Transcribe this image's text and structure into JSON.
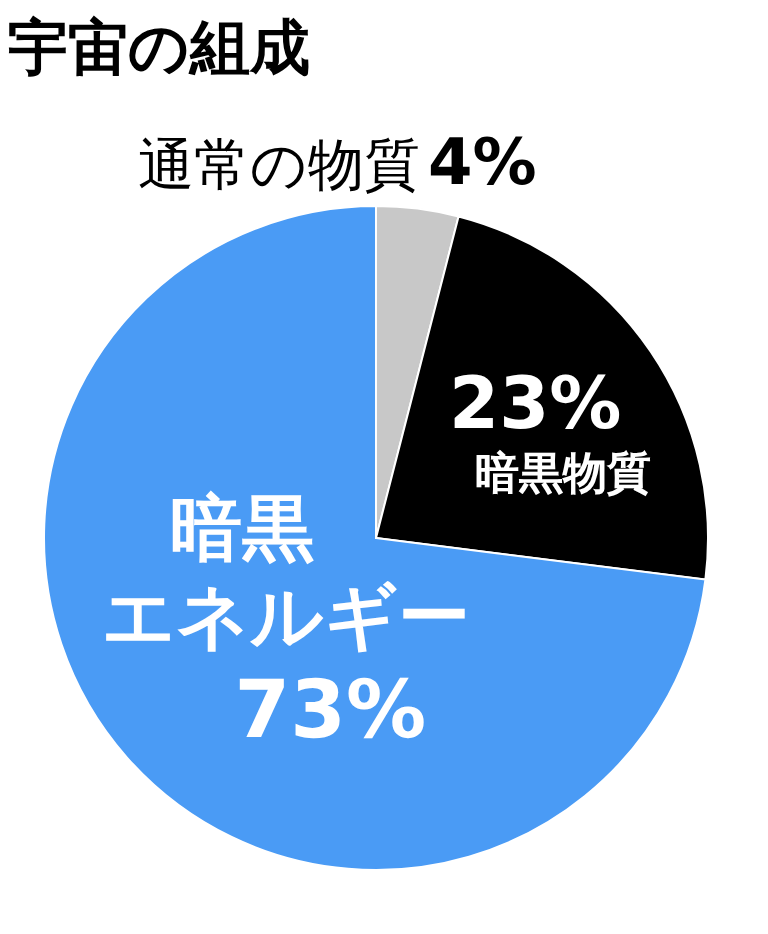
{
  "chart_data": {
    "type": "pie",
    "title": "宇宙の組成",
    "categories": [
      "通常の物質",
      "暗黒物質",
      "暗黒エネルギー"
    ],
    "values": [
      4,
      23,
      73
    ],
    "colors": [
      "#c8c8c8",
      "#000000",
      "#4a9bf5"
    ],
    "value_labels": [
      "4%",
      "23%",
      "73%"
    ]
  }
}
